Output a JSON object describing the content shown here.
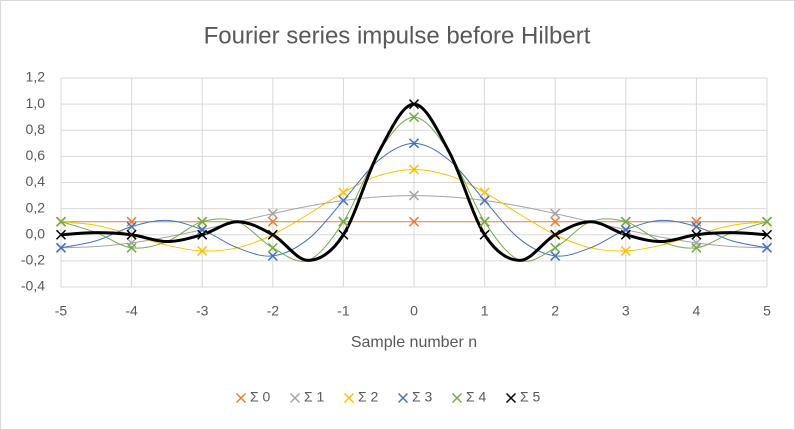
{
  "chart_data": {
    "type": "scatter",
    "title": "Fourier series impulse before Hilbert",
    "x_label": "Sample number n",
    "x": [
      -5,
      -4.5,
      -4,
      -3.5,
      -3,
      -2.5,
      -2,
      -1.5,
      -1,
      -0.5,
      0,
      0.5,
      1,
      1.5,
      2,
      2.5,
      3,
      3.5,
      4,
      4.5,
      5
    ],
    "series": [
      {
        "name": "Σ 0",
        "color": "#ED7D31",
        "width": 1,
        "values": [
          0.1,
          0.1,
          0.1,
          0.1,
          0.1,
          0.1,
          0.1,
          0.1,
          0.1,
          0.1,
          0.1,
          0.1,
          0.1,
          0.1,
          0.1,
          0.1,
          0.1,
          0.1,
          0.1,
          0.1,
          0.1
        ]
      },
      {
        "name": "Σ 1",
        "color": "#A5A5A5",
        "width": 1,
        "values": [
          -0.1,
          -0.09,
          -0.062,
          -0.018,
          0.038,
          0.1,
          0.162,
          0.218,
          0.262,
          0.29,
          0.3,
          0.29,
          0.262,
          0.218,
          0.162,
          0.1,
          0.038,
          -0.018,
          -0.062,
          -0.09,
          -0.1
        ]
      },
      {
        "name": "Σ 2",
        "color": "#FFC000",
        "width": 1,
        "values": [
          0.1,
          0.072,
          0,
          -0.08,
          -0.124,
          -0.1,
          0,
          0.156,
          0.324,
          0.452,
          0.5,
          0.452,
          0.324,
          0.156,
          0,
          -0.1,
          -0.124,
          -0.08,
          0,
          0.072,
          0.1
        ]
      },
      {
        "name": "Σ 3",
        "color": "#4472C4",
        "width": 1,
        "values": [
          -0.1,
          -0.046,
          0.062,
          0.11,
          0.038,
          -0.1,
          -0.162,
          -0.034,
          0.262,
          0.57,
          0.7,
          0.57,
          0.262,
          -0.034,
          -0.162,
          -0.1,
          0.038,
          0.11,
          0.062,
          -0.046,
          -0.1
        ]
      },
      {
        "name": "Σ 4",
        "color": "#70AD47",
        "width": 1,
        "values": [
          0.1,
          0.016,
          -0.1,
          -0.052,
          0.1,
          0.1,
          -0.1,
          -0.196,
          0.1,
          0.632,
          0.9,
          0.632,
          0.1,
          -0.196,
          -0.1,
          0.1,
          0.1,
          -0.052,
          -0.1,
          0.016,
          0.1
        ]
      },
      {
        "name": "Σ 5",
        "color": "#000000",
        "width": 3,
        "values": [
          0,
          0.016,
          0,
          -0.052,
          0,
          0.1,
          0,
          -0.196,
          0,
          0.632,
          1,
          0.632,
          0,
          -0.196,
          0,
          0.1,
          0,
          -0.052,
          0,
          0.016,
          0
        ]
      }
    ],
    "xlim": [
      -5,
      5
    ],
    "xticks": [
      -5,
      -4,
      -3,
      -2,
      -1,
      0,
      1,
      2,
      3,
      4,
      5
    ],
    "ylim": [
      -0.4,
      1.2
    ],
    "yticks": [
      {
        "value": -0.4,
        "label": "-0,4"
      },
      {
        "value": -0.2,
        "label": "-0,2"
      },
      {
        "value": 0,
        "label": "0,0"
      },
      {
        "value": 0.2,
        "label": "0,2"
      },
      {
        "value": 0.4,
        "label": "0,4"
      },
      {
        "value": 0.6,
        "label": "0,6"
      },
      {
        "value": 0.8,
        "label": "0,8"
      },
      {
        "value": 1.0,
        "label": "1,0"
      },
      {
        "value": 1.2,
        "label": "1,2"
      }
    ],
    "grid": true,
    "legend": "bottom"
  }
}
